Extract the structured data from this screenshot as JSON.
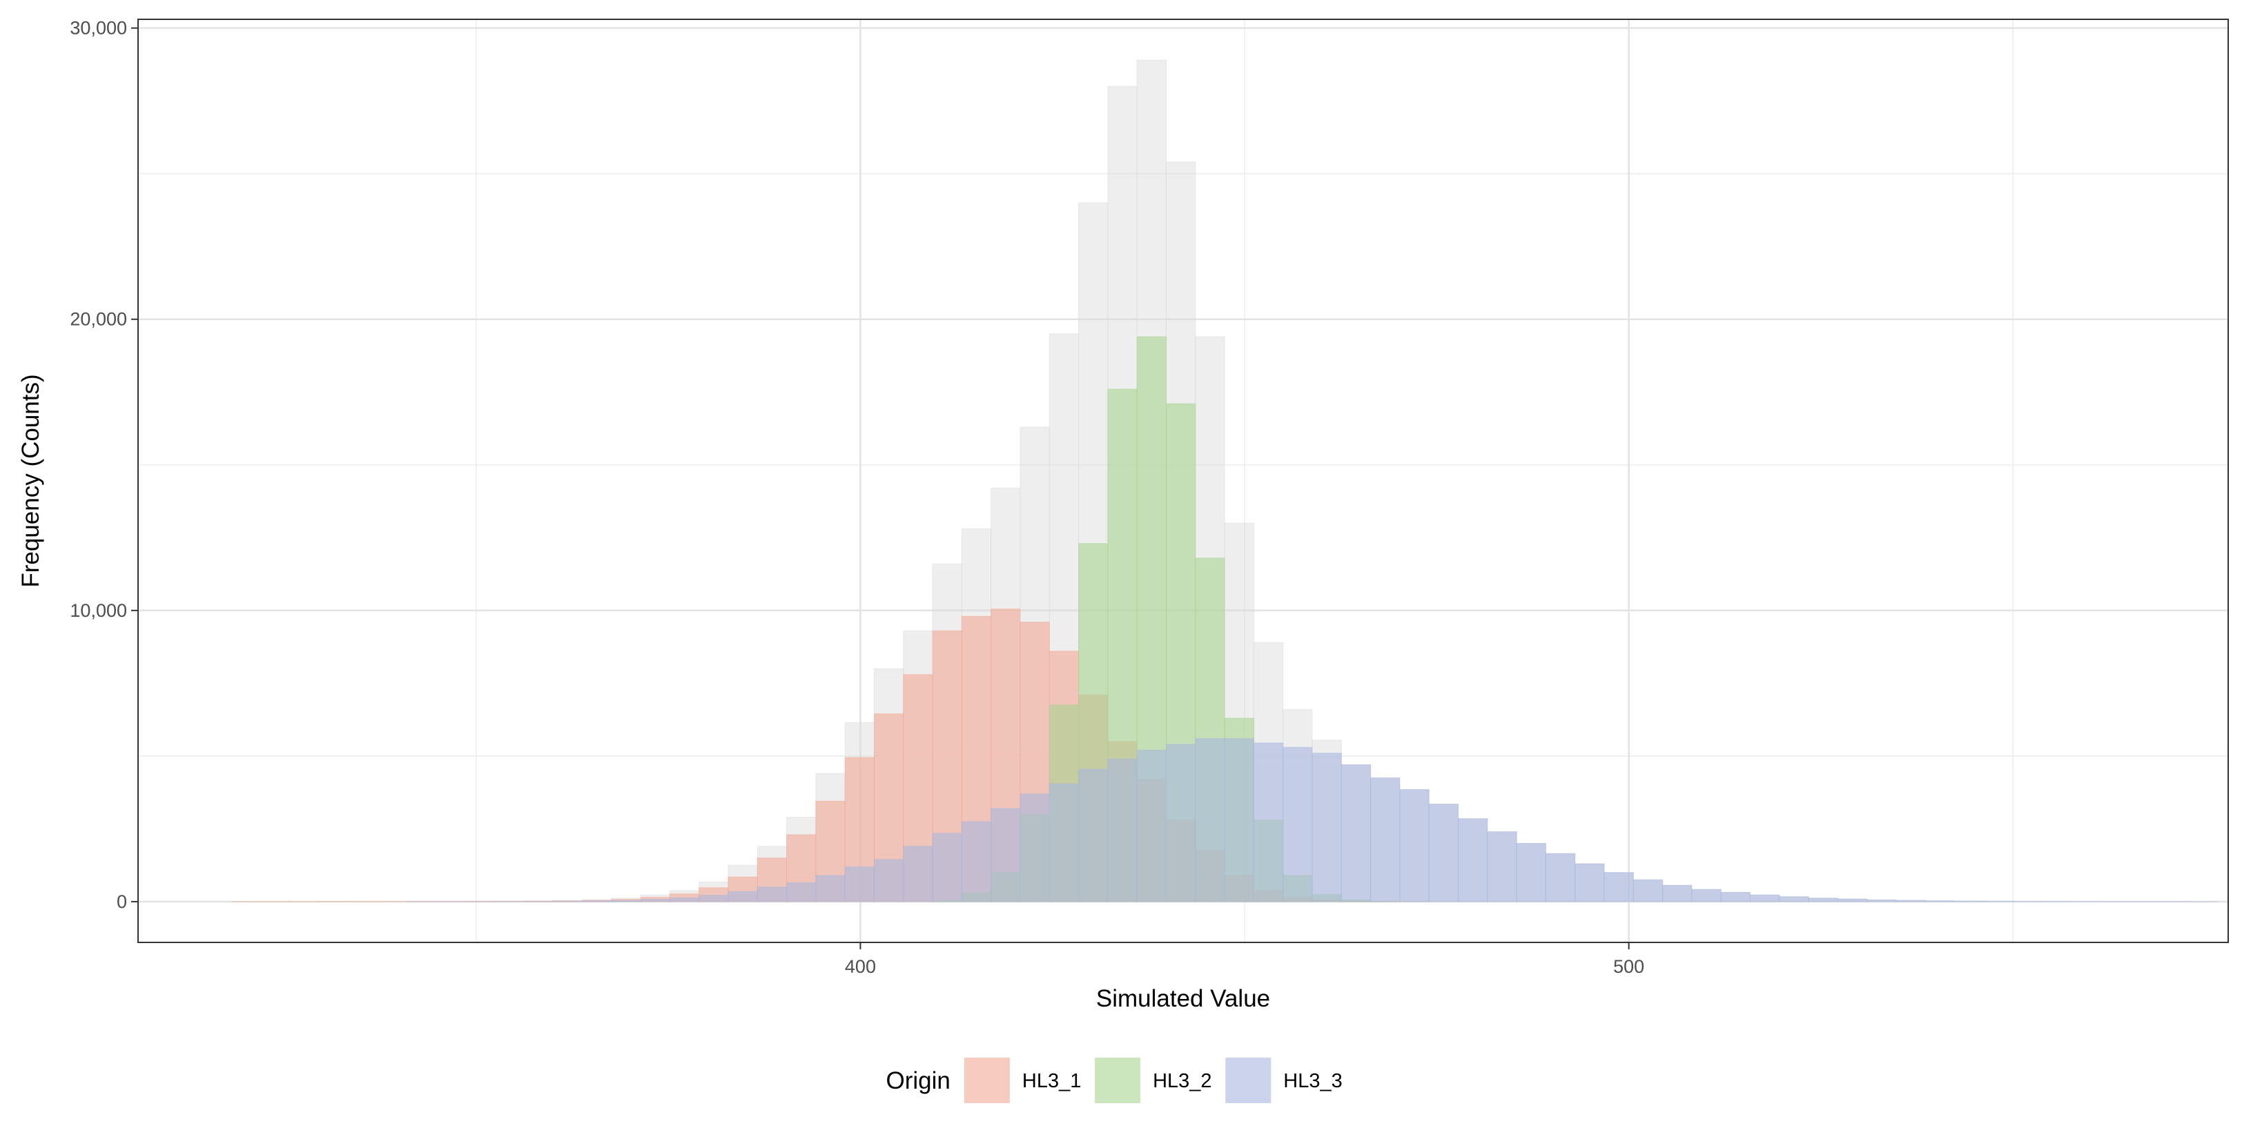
{
  "chart_data": {
    "type": "bar",
    "subtype": "overlaid-histogram",
    "title": "",
    "xlabel": "Simulated Value",
    "ylabel": "Frequency (Counts)",
    "xlim": [
      306,
      578
    ],
    "ylim": [
      -1400,
      30300
    ],
    "x_ticks": [
      400,
      500
    ],
    "x_tick_labels": [
      "400",
      "500"
    ],
    "y_ticks": [
      0,
      10000,
      20000,
      30000
    ],
    "y_tick_labels": [
      "0",
      "10,000",
      "20,000",
      "30,000"
    ],
    "grid": true,
    "bin_width": 3.8,
    "bin_starts": [
      318.2,
      322,
      325.8,
      329.6,
      333.4,
      337.2,
      341,
      344.8,
      348.6,
      352.4,
      356.2,
      360,
      363.8,
      367.6,
      371.4,
      375.2,
      379,
      382.8,
      386.6,
      390.4,
      394.2,
      398,
      401.8,
      405.6,
      409.4,
      413.2,
      417,
      420.8,
      424.6,
      428.4,
      432.2,
      436,
      439.8,
      443.6,
      447.4,
      451.2,
      455,
      458.8,
      462.6,
      466.4,
      470.2,
      474,
      477.8,
      481.6,
      485.4,
      489.2,
      493,
      496.8,
      500.6,
      504.4,
      508.2,
      512,
      515.8,
      519.6,
      523.4,
      527.2,
      531,
      534.8,
      538.6,
      542.4,
      546.2,
      550,
      553.8,
      557.6,
      561.4,
      565.2,
      569,
      572.8
    ],
    "total": {
      "name": "Total",
      "color": "#d9d9d9",
      "values": [
        2,
        3,
        3,
        4,
        5,
        6,
        8,
        10,
        13,
        17,
        25,
        40,
        70,
        120,
        230,
        380,
        680,
        1250,
        1900,
        2900,
        4400,
        6150,
        8000,
        9300,
        11600,
        12800,
        14200,
        16300,
        19500,
        24000,
        28000,
        28900,
        25400,
        19400,
        13000,
        8900,
        6600,
        5550,
        4700,
        4250,
        3850,
        3350,
        2850,
        2400,
        2000,
        1650,
        1300,
        1000,
        750,
        560,
        420,
        320,
        230,
        170,
        120,
        90,
        60,
        45,
        30,
        22,
        15,
        10,
        7,
        5,
        3,
        2,
        2,
        1
      ]
    },
    "series": [
      {
        "name": "HL3_1",
        "color": "#f4a996",
        "values": [
          2,
          3,
          3,
          4,
          5,
          6,
          7,
          8,
          10,
          12,
          18,
          28,
          45,
          80,
          150,
          270,
          480,
          850,
          1500,
          2300,
          3450,
          4950,
          6450,
          7800,
          9300,
          9800,
          10050,
          9600,
          8600,
          7100,
          5500,
          4200,
          2800,
          1750,
          900,
          380,
          150,
          55,
          20,
          6,
          2,
          0,
          0,
          0,
          0,
          0,
          0,
          0,
          0,
          0,
          0,
          0,
          0,
          0,
          0,
          0,
          0,
          0,
          0,
          0,
          0,
          0,
          0,
          0,
          0,
          0,
          0,
          0
        ]
      },
      {
        "name": "HL3_2",
        "color": "#a8d38f",
        "values": [
          0,
          0,
          0,
          0,
          0,
          0,
          0,
          0,
          0,
          0,
          0,
          0,
          0,
          0,
          0,
          0,
          0,
          0,
          0,
          0,
          0,
          0,
          0,
          0,
          30,
          300,
          1000,
          3000,
          6750,
          12300,
          17600,
          19400,
          17100,
          11800,
          6300,
          2800,
          900,
          250,
          60,
          10,
          0,
          0,
          0,
          0,
          0,
          0,
          0,
          0,
          0,
          0,
          0,
          0,
          0,
          0,
          0,
          0,
          0,
          0,
          0,
          0,
          0,
          0,
          0,
          0,
          0,
          0,
          0,
          0
        ]
      },
      {
        "name": "HL3_3",
        "color": "#a8b8e0",
        "values": [
          0,
          0,
          0,
          0,
          0,
          0,
          1,
          2,
          3,
          5,
          7,
          12,
          25,
          40,
          80,
          130,
          220,
          350,
          500,
          650,
          900,
          1200,
          1450,
          1900,
          2350,
          2750,
          3200,
          3700,
          4050,
          4550,
          4900,
          5200,
          5400,
          5600,
          5600,
          5450,
          5300,
          5100,
          4700,
          4250,
          3850,
          3350,
          2850,
          2400,
          2000,
          1650,
          1300,
          1000,
          750,
          560,
          420,
          320,
          230,
          170,
          120,
          90,
          60,
          45,
          30,
          22,
          15,
          10,
          7,
          5,
          3,
          2,
          2,
          1
        ]
      }
    ],
    "legend": {
      "position": "bottom",
      "title": "Origin",
      "entries": [
        "HL3_1",
        "HL3_2",
        "HL3_3"
      ]
    }
  }
}
